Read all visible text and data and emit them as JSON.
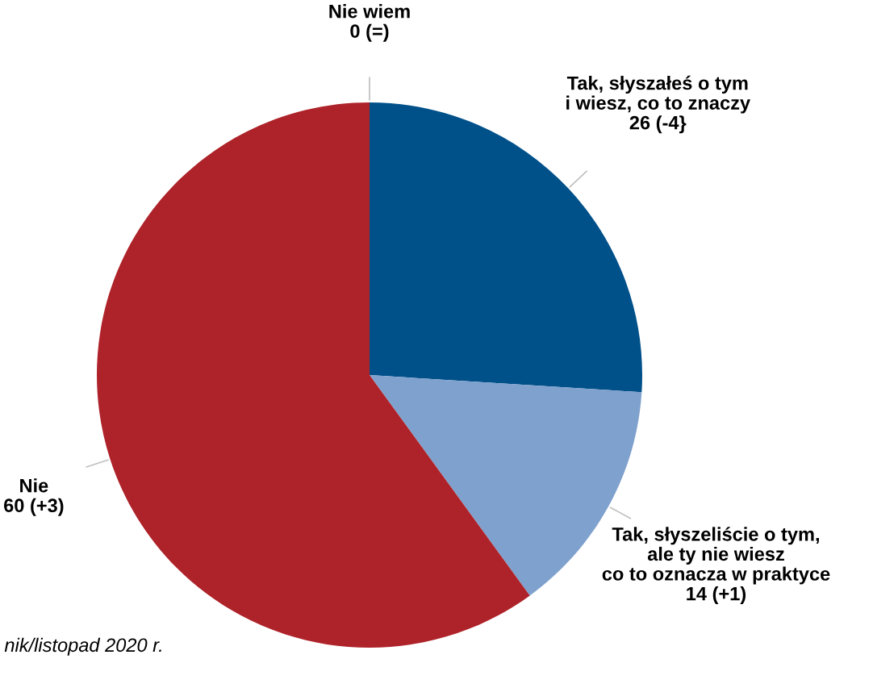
{
  "chart_data": {
    "type": "pie",
    "categories": [
      "Tak, słyszałeś o tym\ni wiesz, co to znaczy",
      "Tak, słyszeliście o tym,\nale ty nie wiesz\nco to oznacza w praktyce",
      "Nie",
      "Nie wiem"
    ],
    "values": [
      26,
      14,
      60,
      0
    ],
    "value_labels": [
      "26 (-4}",
      "14 (+1)",
      "60 (+3)",
      "0 (=)"
    ],
    "colors": [
      "#00508a",
      "#7fa1cd",
      "#ae2229",
      "#a6a6a6"
    ],
    "annotations": [
      "nik/listopad 2020 r."
    ]
  }
}
